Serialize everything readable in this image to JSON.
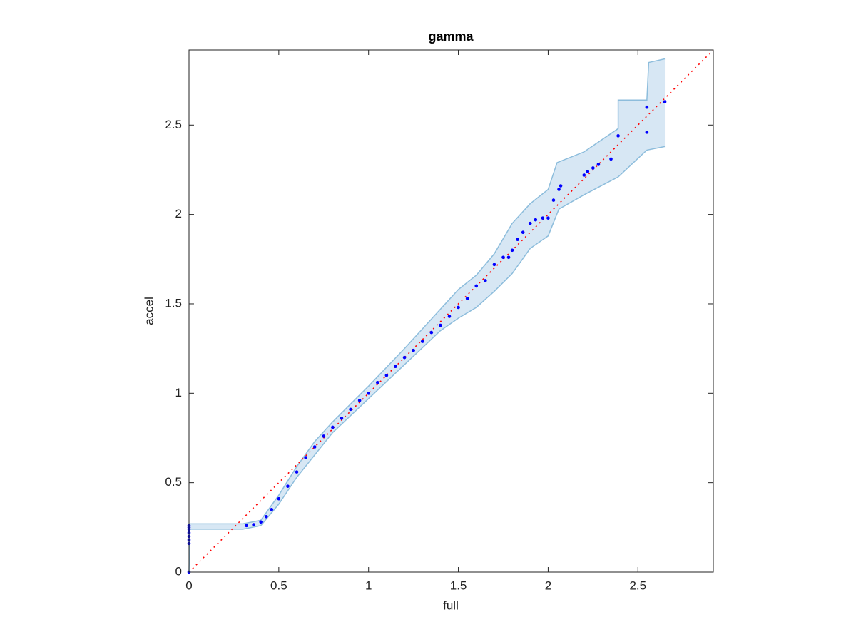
{
  "chart_data": {
    "type": "scatter",
    "title": "gamma",
    "x_label": "full",
    "y_label": "accel",
    "xlim": [
      0,
      2.92
    ],
    "ylim": [
      0,
      2.92
    ],
    "xticks": [
      0,
      0.5,
      1,
      1.5,
      2,
      2.5
    ],
    "yticks": [
      0,
      0.5,
      1,
      1.5,
      2,
      2.5
    ],
    "points": {
      "color": "#0000ff",
      "x": [
        0,
        0,
        0,
        0,
        0,
        0,
        0,
        0,
        0.32,
        0.36,
        0.4,
        0.43,
        0.46,
        0.5,
        0.55,
        0.6,
        0.65,
        0.7,
        0.75,
        0.8,
        0.85,
        0.9,
        0.95,
        1.0,
        1.05,
        1.1,
        1.15,
        1.2,
        1.25,
        1.3,
        1.35,
        1.4,
        1.45,
        1.5,
        1.55,
        1.6,
        1.65,
        1.7,
        1.75,
        1.78,
        1.8,
        1.83,
        1.86,
        1.9,
        1.93,
        1.97,
        2.0,
        2.03,
        2.06,
        2.07,
        2.2,
        2.22,
        2.25,
        2.28,
        2.35,
        2.39,
        2.55,
        2.55,
        2.65
      ],
      "y": [
        0,
        0.16,
        0.18,
        0.2,
        0.22,
        0.24,
        0.25,
        0.26,
        0.26,
        0.265,
        0.28,
        0.31,
        0.35,
        0.41,
        0.48,
        0.56,
        0.64,
        0.7,
        0.76,
        0.81,
        0.86,
        0.91,
        0.96,
        1.0,
        1.06,
        1.1,
        1.15,
        1.2,
        1.24,
        1.29,
        1.34,
        1.38,
        1.43,
        1.48,
        1.53,
        1.6,
        1.63,
        1.72,
        1.76,
        1.76,
        1.8,
        1.86,
        1.9,
        1.95,
        1.97,
        1.98,
        1.98,
        2.08,
        2.14,
        2.16,
        2.22,
        2.24,
        2.26,
        2.28,
        2.31,
        2.44,
        2.46,
        2.6,
        2.63
      ]
    },
    "band": {
      "fill": "#d7e7f4",
      "stroke": "#8dbddc",
      "upper": {
        "x": [
          0,
          0.3,
          0.4,
          0.5,
          0.6,
          0.7,
          0.8,
          1.0,
          1.2,
          1.4,
          1.5,
          1.6,
          1.7,
          1.8,
          1.9,
          2.0,
          2.05,
          2.2,
          2.39,
          2.39,
          2.55,
          2.56,
          2.65
        ],
        "y": [
          0.27,
          0.27,
          0.29,
          0.43,
          0.59,
          0.73,
          0.84,
          1.04,
          1.25,
          1.47,
          1.58,
          1.66,
          1.78,
          1.95,
          2.06,
          2.14,
          2.29,
          2.35,
          2.48,
          2.64,
          2.64,
          2.85,
          2.87
        ]
      },
      "lower": {
        "x": [
          0,
          0.005,
          0.3,
          0.4,
          0.5,
          0.6,
          0.8,
          1.0,
          1.2,
          1.4,
          1.5,
          1.6,
          1.7,
          1.8,
          1.9,
          2.0,
          2.06,
          2.2,
          2.39,
          2.55,
          2.65
        ],
        "y": [
          0,
          0.24,
          0.24,
          0.26,
          0.38,
          0.53,
          0.78,
          0.97,
          1.16,
          1.35,
          1.42,
          1.48,
          1.57,
          1.67,
          1.81,
          1.88,
          2.03,
          2.11,
          2.21,
          2.36,
          2.38
        ]
      }
    },
    "reference": {
      "color": "#ff0000",
      "x": [
        0,
        2.92
      ],
      "y": [
        0,
        2.92
      ]
    }
  }
}
